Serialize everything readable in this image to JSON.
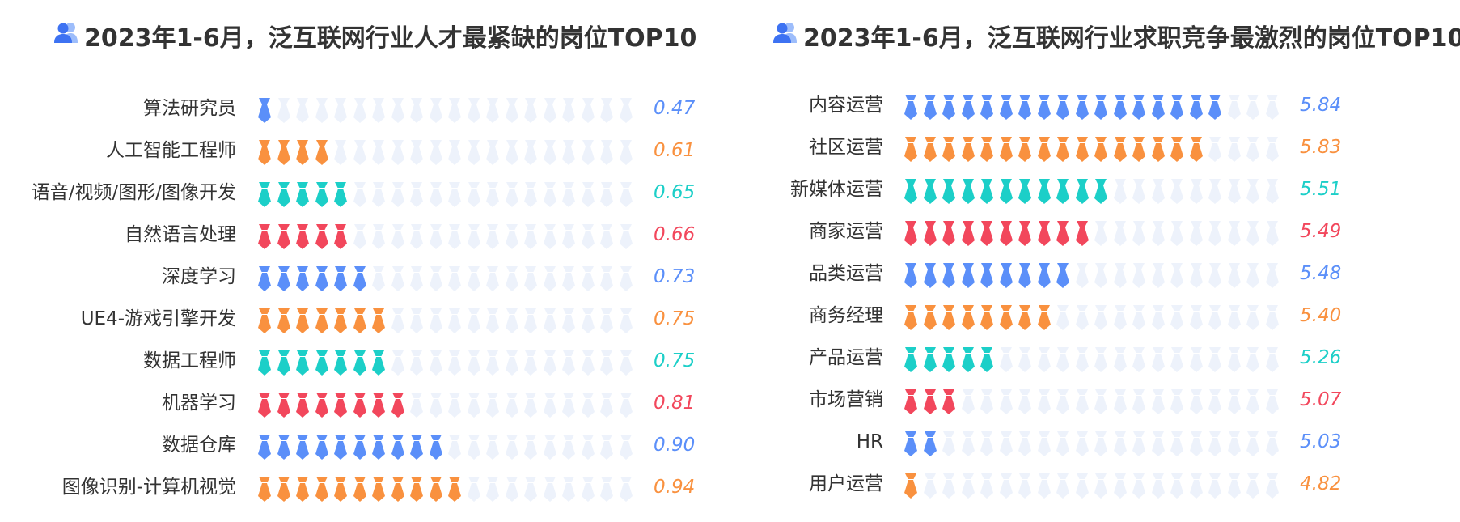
{
  "charts": [
    {
      "title": "2023年1-6月，泛互联网行业人才最紧缺的岗位TOP10",
      "title_icon": "people-icon",
      "icon_unit": "tie-icon",
      "inactive_color": "#edf2fb",
      "rows": [
        {
          "label": "算法研究员",
          "value_text": "0.47",
          "filled": 1,
          "color": "#5b8ff9"
        },
        {
          "label": "人工智能工程师",
          "value_text": "0.61",
          "filled": 4,
          "color": "#f9913f"
        },
        {
          "label": "语音/视频/图形/图像开发",
          "value_text": "0.65",
          "filled": 5,
          "color": "#1ccfc8"
        },
        {
          "label": "自然语言处理",
          "value_text": "0.66",
          "filled": 5,
          "color": "#f2475c"
        },
        {
          "label": "深度学习",
          "value_text": "0.73",
          "filled": 6,
          "color": "#5b8ff9"
        },
        {
          "label": "UE4-游戏引擎开发",
          "value_text": "0.75",
          "filled": 7,
          "color": "#f9913f"
        },
        {
          "label": "数据工程师",
          "value_text": "0.75",
          "filled": 7,
          "color": "#1ccfc8"
        },
        {
          "label": "机器学习",
          "value_text": "0.81",
          "filled": 8,
          "color": "#f2475c"
        },
        {
          "label": "数据仓库",
          "value_text": "0.90",
          "filled": 10,
          "color": "#5b8ff9"
        },
        {
          "label": "图像识别-计算机视觉",
          "value_text": "0.94",
          "filled": 11,
          "color": "#f9913f"
        }
      ]
    },
    {
      "title": "2023年1-6月，泛互联网行业求职竞争最激烈的岗位TOP10",
      "title_icon": "people-icon",
      "icon_unit": "tie-icon",
      "inactive_color": "#edf2fb",
      "rows": [
        {
          "label": "内容运营",
          "value_text": "5.84",
          "filled": 17,
          "color": "#5b8ff9"
        },
        {
          "label": "社区运营",
          "value_text": "5.83",
          "filled": 16,
          "color": "#f9913f"
        },
        {
          "label": "新媒体运营",
          "value_text": "5.51",
          "filled": 11,
          "color": "#1ccfc8"
        },
        {
          "label": "商家运营",
          "value_text": "5.49",
          "filled": 10,
          "color": "#f2475c"
        },
        {
          "label": "品类运营",
          "value_text": "5.48",
          "filled": 9,
          "color": "#5b8ff9"
        },
        {
          "label": "商务经理",
          "value_text": "5.40",
          "filled": 8,
          "color": "#f9913f"
        },
        {
          "label": "产品运营",
          "value_text": "5.26",
          "filled": 5,
          "color": "#1ccfc8"
        },
        {
          "label": "市场营销",
          "value_text": "5.07",
          "filled": 3,
          "color": "#f2475c"
        },
        {
          "label": "HR",
          "value_text": "5.03",
          "filled": 2,
          "color": "#5b8ff9"
        },
        {
          "label": "用户运营",
          "value_text": "4.82",
          "filled": 1,
          "color": "#f9913f"
        }
      ]
    }
  ],
  "chart_data": [
    {
      "type": "bar",
      "title": "2023年1-6月，泛互联网行业人才最紧缺的岗位TOP10",
      "categories": [
        "算法研究员",
        "人工智能工程师",
        "语音/视频/图形/图像开发",
        "自然语言处理",
        "深度学习",
        "UE4-游戏引擎开发",
        "数据工程师",
        "机器学习",
        "数据仓库",
        "图像识别-计算机视觉"
      ],
      "values": [
        0.47,
        0.61,
        0.65,
        0.66,
        0.73,
        0.75,
        0.75,
        0.81,
        0.9,
        0.94
      ]
    },
    {
      "type": "bar",
      "title": "2023年1-6月，泛互联网行业求职竞争最激烈的岗位TOP10",
      "categories": [
        "内容运营",
        "社区运营",
        "新媒体运营",
        "商家运营",
        "品类运营",
        "商务经理",
        "产品运营",
        "市场营销",
        "HR",
        "用户运营"
      ],
      "values": [
        5.84,
        5.83,
        5.51,
        5.49,
        5.48,
        5.4,
        5.26,
        5.07,
        5.03,
        4.82
      ]
    }
  ]
}
